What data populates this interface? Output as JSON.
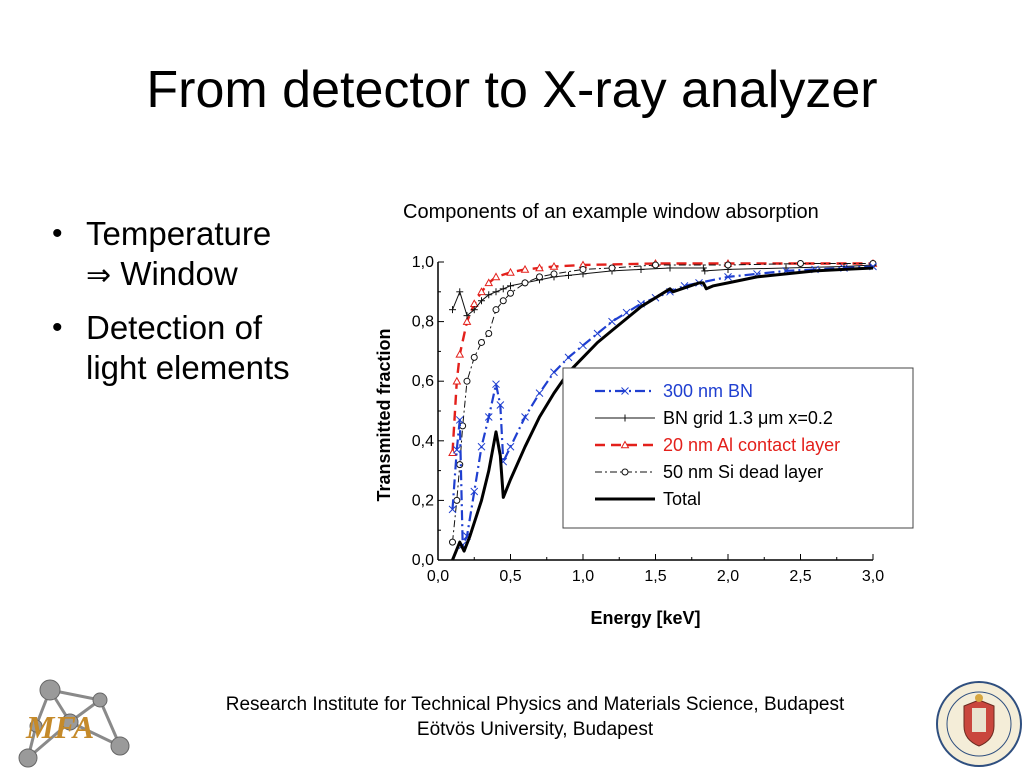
{
  "slide": {
    "title": "From detector to X-ray analyzer",
    "bullets": [
      {
        "text": "Temperature",
        "arrow": "⇒",
        "text2": "Window"
      },
      {
        "text": "Detection of",
        "text2": "light elements"
      }
    ]
  },
  "footer": {
    "line1": "Research Institute for Technical Physics and Materials Science, Budapest",
    "line2": "Eötvös University, Budapest"
  },
  "logo": {
    "text": "MFA",
    "icon": "molecule-logo-icon"
  },
  "seal": {
    "icon": "university-seal-icon"
  },
  "chart_data": {
    "type": "line",
    "title": "Components of an example window absorption",
    "xlabel": "Energy [keV]",
    "ylabel": "Transmitted fraction",
    "xlim": [
      0,
      3.0
    ],
    "ylim": [
      0,
      1.0
    ],
    "x_ticks": [
      "0,0",
      "0,5",
      "1,0",
      "1,5",
      "2,0",
      "2,5",
      "3,0"
    ],
    "y_ticks": [
      "0,0",
      "0,2",
      "0,4",
      "0,6",
      "0,8",
      "1,0"
    ],
    "grid": false,
    "legend_position": "center-right",
    "series": [
      {
        "name": "300 nm BN",
        "color": "#1f3fd0",
        "dash": "dash-dot",
        "marker": "x",
        "points": [
          [
            0.1,
            0.17
          ],
          [
            0.13,
            0.37
          ],
          [
            0.15,
            0.47
          ],
          [
            0.17,
            0.05
          ],
          [
            0.2,
            0.08
          ],
          [
            0.25,
            0.23
          ],
          [
            0.3,
            0.38
          ],
          [
            0.35,
            0.48
          ],
          [
            0.4,
            0.59
          ],
          [
            0.43,
            0.52
          ],
          [
            0.45,
            0.33
          ],
          [
            0.5,
            0.38
          ],
          [
            0.6,
            0.48
          ],
          [
            0.7,
            0.56
          ],
          [
            0.8,
            0.63
          ],
          [
            0.9,
            0.68
          ],
          [
            1.0,
            0.72
          ],
          [
            1.1,
            0.76
          ],
          [
            1.2,
            0.8
          ],
          [
            1.3,
            0.83
          ],
          [
            1.4,
            0.86
          ],
          [
            1.5,
            0.88
          ],
          [
            1.6,
            0.9
          ],
          [
            1.7,
            0.92
          ],
          [
            1.8,
            0.93
          ],
          [
            2.0,
            0.95
          ],
          [
            2.2,
            0.96
          ],
          [
            2.4,
            0.97
          ],
          [
            2.6,
            0.975
          ],
          [
            2.8,
            0.98
          ],
          [
            3.0,
            0.985
          ]
        ]
      },
      {
        "name": "BN grid 1.3 μm x=0.2",
        "color": "#111111",
        "dash": "solid-thin",
        "marker": "+",
        "points": [
          [
            0.1,
            0.84
          ],
          [
            0.15,
            0.9
          ],
          [
            0.2,
            0.82
          ],
          [
            0.25,
            0.84
          ],
          [
            0.3,
            0.87
          ],
          [
            0.35,
            0.89
          ],
          [
            0.4,
            0.9
          ],
          [
            0.45,
            0.91
          ],
          [
            0.5,
            0.92
          ],
          [
            0.6,
            0.93
          ],
          [
            0.7,
            0.94
          ],
          [
            0.8,
            0.95
          ],
          [
            0.9,
            0.955
          ],
          [
            1.0,
            0.96
          ],
          [
            1.2,
            0.97
          ],
          [
            1.4,
            0.975
          ],
          [
            1.6,
            0.98
          ],
          [
            1.83,
            0.98
          ],
          [
            1.84,
            0.97
          ],
          [
            2.0,
            0.975
          ],
          [
            2.4,
            0.98
          ],
          [
            2.8,
            0.985
          ],
          [
            3.0,
            0.99
          ]
        ]
      },
      {
        "name": "20 nm Al contact layer",
        "color": "#e3201b",
        "dash": "dashed",
        "marker": "triangle",
        "points": [
          [
            0.1,
            0.36
          ],
          [
            0.13,
            0.6
          ],
          [
            0.15,
            0.69
          ],
          [
            0.2,
            0.8
          ],
          [
            0.25,
            0.86
          ],
          [
            0.3,
            0.9
          ],
          [
            0.35,
            0.93
          ],
          [
            0.4,
            0.95
          ],
          [
            0.5,
            0.965
          ],
          [
            0.6,
            0.975
          ],
          [
            0.7,
            0.98
          ],
          [
            0.8,
            0.985
          ],
          [
            1.0,
            0.99
          ],
          [
            1.5,
            0.995
          ],
          [
            2.0,
            0.995
          ],
          [
            3.0,
            0.995
          ]
        ]
      },
      {
        "name": "50 nm Si dead layer",
        "color": "#111111",
        "dash": "dash-dot-thin",
        "marker": "circle",
        "points": [
          [
            0.1,
            0.06
          ],
          [
            0.13,
            0.2
          ],
          [
            0.15,
            0.32
          ],
          [
            0.17,
            0.45
          ],
          [
            0.2,
            0.6
          ],
          [
            0.25,
            0.68
          ],
          [
            0.3,
            0.73
          ],
          [
            0.35,
            0.76
          ],
          [
            0.4,
            0.84
          ],
          [
            0.45,
            0.87
          ],
          [
            0.5,
            0.895
          ],
          [
            0.6,
            0.93
          ],
          [
            0.7,
            0.95
          ],
          [
            0.8,
            0.96
          ],
          [
            1.0,
            0.975
          ],
          [
            1.2,
            0.98
          ],
          [
            1.5,
            0.99
          ],
          [
            2.0,
            0.99
          ],
          [
            2.5,
            0.995
          ],
          [
            3.0,
            0.995
          ]
        ]
      },
      {
        "name": "Total",
        "color": "#000000",
        "dash": "solid-thick",
        "marker": "none",
        "points": [
          [
            0.1,
            0.0
          ],
          [
            0.15,
            0.06
          ],
          [
            0.18,
            0.03
          ],
          [
            0.22,
            0.08
          ],
          [
            0.3,
            0.2
          ],
          [
            0.35,
            0.3
          ],
          [
            0.4,
            0.43
          ],
          [
            0.43,
            0.35
          ],
          [
            0.45,
            0.21
          ],
          [
            0.5,
            0.27
          ],
          [
            0.6,
            0.38
          ],
          [
            0.7,
            0.48
          ],
          [
            0.8,
            0.56
          ],
          [
            0.9,
            0.63
          ],
          [
            1.0,
            0.68
          ],
          [
            1.1,
            0.73
          ],
          [
            1.2,
            0.77
          ],
          [
            1.3,
            0.81
          ],
          [
            1.4,
            0.85
          ],
          [
            1.5,
            0.88
          ],
          [
            1.6,
            0.91
          ],
          [
            1.62,
            0.9
          ],
          [
            1.8,
            0.93
          ],
          [
            1.83,
            0.93
          ],
          [
            1.85,
            0.91
          ],
          [
            1.9,
            0.92
          ],
          [
            2.0,
            0.93
          ],
          [
            2.2,
            0.95
          ],
          [
            2.4,
            0.96
          ],
          [
            2.6,
            0.97
          ],
          [
            2.8,
            0.975
          ],
          [
            3.0,
            0.98
          ]
        ]
      }
    ]
  }
}
